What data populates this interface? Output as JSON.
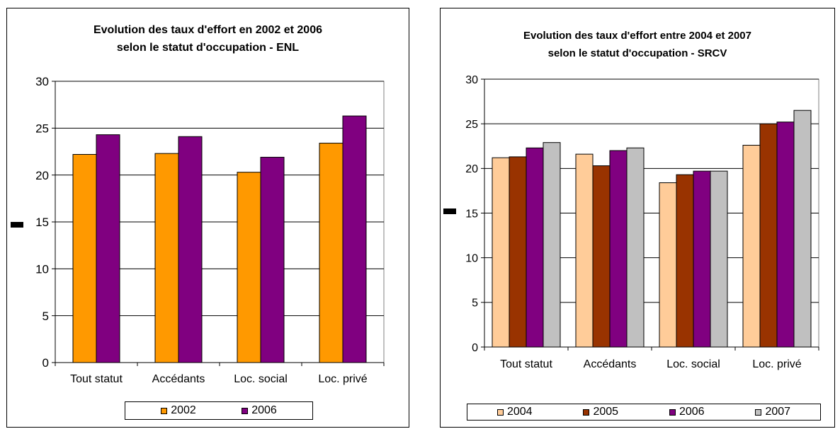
{
  "chart_data": [
    {
      "type": "bar",
      "title_lines": [
        "Evolution des taux d'effort en 2002 et 2006",
        "selon le statut d'occupation - ENL"
      ],
      "categories": [
        "Tout statut",
        "Accédants",
        "Loc. social",
        "Loc. privé"
      ],
      "series": [
        {
          "name": "2002",
          "color": "#FF9900",
          "values": [
            22.2,
            22.3,
            20.3,
            23.4
          ]
        },
        {
          "name": "2006",
          "color": "#800080",
          "values": [
            24.3,
            24.1,
            21.9,
            26.3
          ]
        }
      ],
      "ylim": [
        0,
        30
      ],
      "yticks": [
        0,
        5,
        10,
        15,
        20,
        25,
        30
      ],
      "grid": true,
      "legend_position": "bottom"
    },
    {
      "type": "bar",
      "title_lines": [
        "Evolution des taux d'effort entre 2004 et 2007",
        "selon le statut d'occupation - SRCV"
      ],
      "categories": [
        "Tout statut",
        "Accédants",
        "Loc. social",
        "Loc. privé"
      ],
      "series": [
        {
          "name": "2004",
          "color": "#FFCC99",
          "values": [
            21.2,
            21.6,
            18.4,
            22.6
          ]
        },
        {
          "name": "2005",
          "color": "#993300",
          "values": [
            21.3,
            20.3,
            19.3,
            25.0
          ]
        },
        {
          "name": "2006",
          "color": "#800080",
          "values": [
            22.3,
            22.0,
            19.7,
            25.2
          ]
        },
        {
          "name": "2007",
          "color": "#C0C0C0",
          "values": [
            22.9,
            22.3,
            19.7,
            26.5
          ]
        }
      ],
      "ylim": [
        0,
        30
      ],
      "yticks": [
        0,
        5,
        10,
        15,
        20,
        25,
        30
      ],
      "grid": true,
      "legend_position": "bottom"
    }
  ]
}
